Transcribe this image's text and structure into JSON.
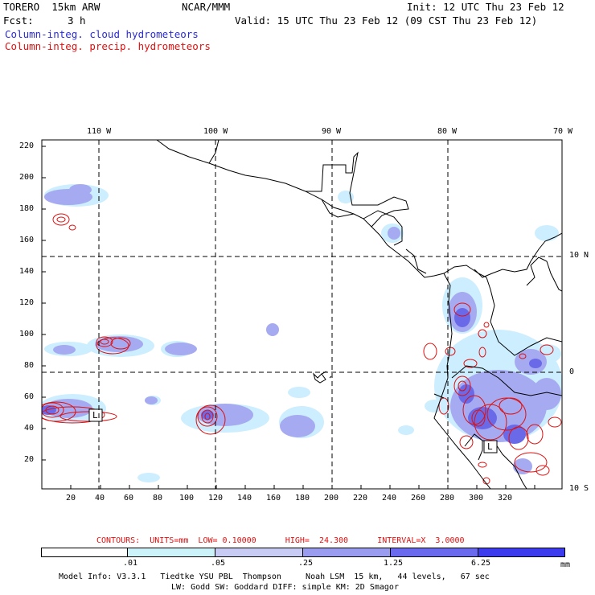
{
  "header": {
    "model": "TORERO  15km ARW",
    "center": "NCAR/MMM",
    "init": "Init: 12 UTC Thu 23 Feb 12",
    "fcst_label": "Fcst:",
    "fcst_value": "3 h",
    "valid": "Valid: 15 UTC Thu 23 Feb 12 (09 CST Thu 23 Feb 12)",
    "legend_cloud": "Column-integ. cloud hydrometeors",
    "legend_precip": "Column-integ. precip. hydrometeors"
  },
  "map": {
    "top_lon_labels": [
      "110 W",
      "100 W",
      "90 W",
      "80 W",
      "70 W"
    ],
    "right_lat_labels": [
      "10 N",
      "0",
      "10 S"
    ],
    "x_ticks": [
      "20",
      "40",
      "60",
      "80",
      "100",
      "120",
      "140",
      "160",
      "180",
      "200",
      "220",
      "240",
      "260",
      "280",
      "300",
      "320"
    ],
    "y_ticks": [
      "220",
      "200",
      "180",
      "160",
      "140",
      "120",
      "100",
      "80",
      "60",
      "40",
      "20"
    ],
    "box_labels": [
      "L",
      "L"
    ],
    "colors": {
      "cloud_light": "#cceeff",
      "cloud_mid": "#a6aaf0",
      "cloud_dark": "#6a6ae8",
      "precip": "#dd1111",
      "frame": "#000000"
    }
  },
  "colorbar": {
    "contours_label": "CONTOURS:  UNITS=mm  LOW= 0.10000      HIGH=  24.300      INTERVAL=X  3.0000",
    "units": "mm",
    "tick_labels": [
      ".01",
      ".05",
      ".25",
      "1.25",
      "6.25"
    ],
    "colors": [
      "#ffffff",
      "#ccf2fa",
      "#c8ccf4",
      "#9a9cf0",
      "#6a6aee",
      "#3c3cee",
      "#1a1aea"
    ]
  },
  "footer": {
    "line1": "Model Info: V3.3.1   Tiedtke YSU PBL  Thompson     Noah LSM  15 km,   44 levels,   67 sec",
    "line2": "LW: Godd SW: Goddard DIFF: simple KM: 2D Smagor"
  }
}
